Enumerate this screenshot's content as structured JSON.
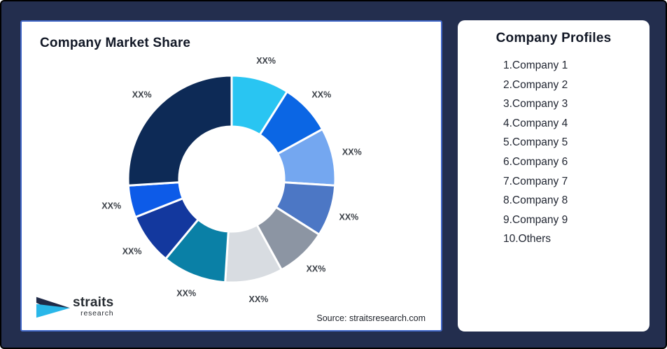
{
  "frame": {
    "background_color": "#232E4E",
    "outer_border_color": "#000000"
  },
  "market_share_card": {
    "title": "Company Market Share",
    "source": "Source: straitsresearch.com",
    "border_color": "#4167C8"
  },
  "chart_data": {
    "type": "pie",
    "subtype": "donut",
    "title": "Company Market Share",
    "legend_position": "none",
    "start_angle_deg": 0,
    "direction": "clockwise",
    "slices": [
      {
        "label": "XX%",
        "value": 9,
        "color": "#29C5F2",
        "name": "Company 1"
      },
      {
        "label": "XX%",
        "value": 8,
        "color": "#0B66E4",
        "name": "Company 2"
      },
      {
        "label": "XX%",
        "value": 9,
        "color": "#74A7F0",
        "name": "Company 3"
      },
      {
        "label": "XX%",
        "value": 8,
        "color": "#4C77C5",
        "name": "Company 4"
      },
      {
        "label": "XX%",
        "value": 8,
        "color": "#8C95A3",
        "name": "Company 5"
      },
      {
        "label": "XX%",
        "value": 9,
        "color": "#D8DCE1",
        "name": "Company 6"
      },
      {
        "label": "XX%",
        "value": 10,
        "color": "#0A80A6",
        "name": "Company 7"
      },
      {
        "label": "XX%",
        "value": 8,
        "color": "#13389E",
        "name": "Company 8"
      },
      {
        "label": "XX%",
        "value": 5,
        "color": "#0D5BE8",
        "name": "Company 9"
      },
      {
        "label": "XX%",
        "value": 26,
        "color": "#0D2A56",
        "name": "Others"
      }
    ]
  },
  "profiles_card": {
    "title": "Company Profiles",
    "items": [
      "1.Company 1",
      "2.Company 2",
      "3.Company 3",
      "4.Company 4",
      "5.Company 5",
      "6.Company 6",
      "7.Company 7",
      "8.Company 8",
      "9.Company 9",
      "10.Others"
    ]
  },
  "logo": {
    "name": "straits",
    "sub": "research",
    "navy_color": "#1F2A47",
    "cyan_color": "#29B7E9"
  }
}
